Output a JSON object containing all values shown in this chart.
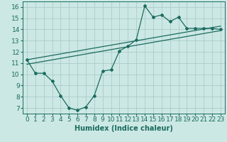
{
  "title": "",
  "xlabel": "Humidex (Indice chaleur)",
  "xlim": [
    -0.5,
    23.5
  ],
  "ylim": [
    6.5,
    16.5
  ],
  "xticks": [
    0,
    1,
    2,
    3,
    4,
    5,
    6,
    7,
    8,
    9,
    10,
    11,
    12,
    13,
    14,
    15,
    16,
    17,
    18,
    19,
    20,
    21,
    22,
    23
  ],
  "yticks": [
    7,
    8,
    9,
    10,
    11,
    12,
    13,
    14,
    15,
    16
  ],
  "bg_color": "#cce8e4",
  "line_color": "#1a6b5e",
  "grid_color": "#aaccca",
  "line1_x": [
    0,
    1,
    2,
    3,
    4,
    5,
    6,
    7,
    8,
    9,
    10,
    11,
    12,
    13,
    14,
    15,
    16,
    17,
    18,
    19,
    20,
    21,
    22,
    23
  ],
  "line1_y": [
    11.3,
    10.1,
    10.1,
    9.4,
    8.1,
    7.0,
    6.8,
    7.1,
    8.1,
    10.3,
    10.4,
    12.1,
    12.5,
    13.1,
    16.1,
    15.1,
    15.3,
    14.7,
    15.1,
    14.1,
    14.1,
    14.1,
    14.1,
    14.0
  ],
  "line2_x": [
    0,
    23
  ],
  "line2_y": [
    10.9,
    13.9
  ],
  "line3_x": [
    0,
    23
  ],
  "line3_y": [
    11.3,
    14.3
  ],
  "fontsize_label": 7,
  "fontsize_tick": 6.5
}
